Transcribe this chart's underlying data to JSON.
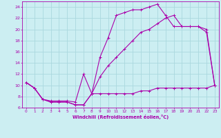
{
  "xlabel": "Windchill (Refroidissement éolien,°C)",
  "bg_color": "#cceef2",
  "grid_color": "#aad8de",
  "line_color": "#aa00aa",
  "xlim": [
    -0.5,
    23.5
  ],
  "ylim": [
    6,
    25
  ],
  "xticks": [
    0,
    1,
    2,
    3,
    4,
    5,
    6,
    7,
    8,
    9,
    10,
    11,
    12,
    13,
    14,
    15,
    16,
    17,
    18,
    19,
    20,
    21,
    22,
    23
  ],
  "yticks": [
    6,
    8,
    10,
    12,
    14,
    16,
    18,
    20,
    22,
    24
  ],
  "line1_x": [
    0,
    1,
    2,
    3,
    4,
    5,
    6,
    7,
    8,
    9,
    10,
    11,
    12,
    13,
    14,
    15,
    16,
    17,
    18,
    19,
    20,
    21,
    22,
    23
  ],
  "line1_y": [
    10.5,
    9.5,
    7.5,
    7.0,
    7.0,
    7.0,
    6.5,
    6.5,
    8.5,
    8.5,
    8.5,
    8.5,
    8.5,
    8.5,
    9.0,
    9.0,
    9.5,
    9.5,
    9.5,
    9.5,
    9.5,
    9.5,
    9.5,
    10.0
  ],
  "line2_x": [
    0,
    1,
    2,
    3,
    4,
    5,
    6,
    7,
    8,
    9,
    10,
    11,
    12,
    13,
    14,
    15,
    16,
    17,
    18,
    19,
    20,
    21,
    22,
    23
  ],
  "line2_y": [
    10.5,
    9.5,
    7.5,
    7.0,
    7.0,
    7.0,
    6.5,
    6.5,
    8.5,
    15.0,
    18.5,
    22.5,
    23.0,
    23.5,
    23.5,
    24.0,
    24.5,
    22.5,
    20.5,
    20.5,
    20.5,
    20.5,
    19.5,
    10.0
  ],
  "line3_x": [
    0,
    1,
    2,
    3,
    4,
    5,
    6,
    7,
    8,
    9,
    10,
    11,
    12,
    13,
    14,
    15,
    16,
    17,
    18,
    19,
    20,
    21,
    22,
    23
  ],
  "line3_y": [
    10.5,
    9.5,
    7.5,
    7.2,
    7.2,
    7.2,
    7.0,
    12.0,
    8.5,
    11.5,
    13.5,
    15.0,
    16.5,
    18.0,
    19.5,
    20.0,
    21.0,
    22.0,
    22.5,
    20.5,
    20.5,
    20.5,
    20.0,
    10.0
  ]
}
